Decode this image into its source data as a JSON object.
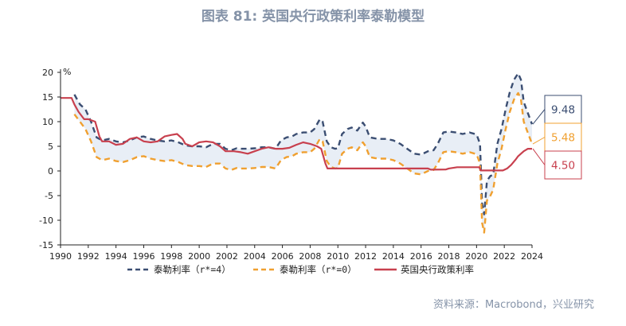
{
  "chart_data": {
    "type": "line",
    "title": "图表 81: 英国央行政策利率泰勒模型",
    "ylabel": "%",
    "xlabel": "",
    "xlim": [
      1990,
      2024
    ],
    "ylim": [
      -15,
      20
    ],
    "x_ticks": [
      "1990",
      "1992",
      "1994",
      "1996",
      "1998",
      "2000",
      "2002",
      "2004",
      "2006",
      "2008",
      "2010",
      "2012",
      "2014",
      "2016",
      "2018",
      "2020",
      "2022",
      "2024"
    ],
    "y_ticks": [
      "20",
      "15",
      "10",
      "5",
      "0",
      "-5",
      "-10",
      "-15"
    ],
    "legend_position": "bottom",
    "shaded_band": "between Taylor rule (r*=4) and Taylor rule (r*=0)",
    "series": [
      {
        "name": "泰勒利率（r*=4）",
        "color": "#3b4e72",
        "dash": "dashed",
        "points": [
          [
            1991.0,
            15.5
          ],
          [
            1991.4,
            13.5
          ],
          [
            1991.8,
            12.5
          ],
          [
            1992.2,
            10
          ],
          [
            1992.6,
            6.8
          ],
          [
            1993.0,
            6.2
          ],
          [
            1993.5,
            6.5
          ],
          [
            1994.0,
            6.0
          ],
          [
            1994.5,
            5.8
          ],
          [
            1995.0,
            6.2
          ],
          [
            1995.5,
            6.8
          ],
          [
            1996.0,
            7.0
          ],
          [
            1996.5,
            6.5
          ],
          [
            1997.0,
            6.2
          ],
          [
            1997.5,
            6.0
          ],
          [
            1998.0,
            6.2
          ],
          [
            1998.5,
            5.8
          ],
          [
            1999.0,
            5.2
          ],
          [
            1999.5,
            5.0
          ],
          [
            2000.0,
            5.0
          ],
          [
            2000.5,
            4.8
          ],
          [
            2001.0,
            5.5
          ],
          [
            2001.5,
            5.5
          ],
          [
            2001.9,
            4.5
          ],
          [
            2002.3,
            4.2
          ],
          [
            2002.7,
            4.6
          ],
          [
            2003.0,
            4.5
          ],
          [
            2003.5,
            4.5
          ],
          [
            2004.0,
            4.6
          ],
          [
            2004.5,
            4.8
          ],
          [
            2005.0,
            4.8
          ],
          [
            2005.5,
            4.5
          ],
          [
            2005.9,
            6.2
          ],
          [
            2006.3,
            6.8
          ],
          [
            2006.7,
            7.0
          ],
          [
            2007.0,
            7.5
          ],
          [
            2007.5,
            7.8
          ],
          [
            2008.0,
            7.8
          ],
          [
            2008.3,
            8.5
          ],
          [
            2008.7,
            10.5
          ],
          [
            2008.9,
            10.0
          ],
          [
            2009.2,
            6.0
          ],
          [
            2009.5,
            4.8
          ],
          [
            2009.8,
            4.5
          ],
          [
            2010.0,
            4.6
          ],
          [
            2010.3,
            7.5
          ],
          [
            2010.7,
            8.5
          ],
          [
            2011.0,
            8.8
          ],
          [
            2011.4,
            8.2
          ],
          [
            2011.8,
            9.8
          ],
          [
            2012.0,
            9.0
          ],
          [
            2012.3,
            6.8
          ],
          [
            2012.7,
            6.6
          ],
          [
            2013.0,
            6.5
          ],
          [
            2013.5,
            6.5
          ],
          [
            2014.0,
            6.2
          ],
          [
            2014.5,
            5.5
          ],
          [
            2015.0,
            4.5
          ],
          [
            2015.5,
            3.5
          ],
          [
            2016.0,
            3.3
          ],
          [
            2016.5,
            4.0
          ],
          [
            2016.9,
            4.2
          ],
          [
            2017.2,
            5.5
          ],
          [
            2017.6,
            7.8
          ],
          [
            2018.0,
            8.0
          ],
          [
            2018.5,
            7.8
          ],
          [
            2019.0,
            7.5
          ],
          [
            2019.5,
            7.8
          ],
          [
            2020.0,
            7.4
          ],
          [
            2020.25,
            5.5
          ],
          [
            2020.4,
            -6.5
          ],
          [
            2020.55,
            -8.8
          ],
          [
            2020.75,
            -2.0
          ],
          [
            2021.0,
            -1.0
          ],
          [
            2021.2,
            -0.8
          ],
          [
            2021.5,
            5.5
          ],
          [
            2021.8,
            8.5
          ],
          [
            2022.1,
            12.5
          ],
          [
            2022.4,
            16.0
          ],
          [
            2022.7,
            18.5
          ],
          [
            2023.0,
            19.8
          ],
          [
            2023.2,
            18.5
          ],
          [
            2023.4,
            14.0
          ],
          [
            2023.6,
            12.5
          ],
          [
            2023.8,
            11.0
          ],
          [
            2024.0,
            9.48
          ]
        ]
      },
      {
        "name": "泰勒利率（r*=0）",
        "color": "#f0a030",
        "dash": "dashed",
        "points": [
          [
            1991.0,
            11.5
          ],
          [
            1991.4,
            10.0
          ],
          [
            1991.8,
            8.5
          ],
          [
            1992.2,
            6.0
          ],
          [
            1992.6,
            2.8
          ],
          [
            1993.0,
            2.2
          ],
          [
            1993.5,
            2.5
          ],
          [
            1994.0,
            2.0
          ],
          [
            1994.5,
            1.8
          ],
          [
            1995.0,
            2.2
          ],
          [
            1995.5,
            2.8
          ],
          [
            1996.0,
            3.0
          ],
          [
            1996.5,
            2.5
          ],
          [
            1997.0,
            2.2
          ],
          [
            1997.5,
            2.0
          ],
          [
            1998.0,
            2.2
          ],
          [
            1998.5,
            1.8
          ],
          [
            1999.0,
            1.2
          ],
          [
            1999.5,
            1.0
          ],
          [
            2000.0,
            1.0
          ],
          [
            2000.5,
            0.8
          ],
          [
            2001.0,
            1.5
          ],
          [
            2001.5,
            1.5
          ],
          [
            2001.9,
            0.5
          ],
          [
            2002.3,
            0.2
          ],
          [
            2002.7,
            0.6
          ],
          [
            2003.0,
            0.5
          ],
          [
            2003.5,
            0.5
          ],
          [
            2004.0,
            0.6
          ],
          [
            2004.5,
            0.8
          ],
          [
            2005.0,
            0.8
          ],
          [
            2005.5,
            0.5
          ],
          [
            2005.9,
            2.2
          ],
          [
            2006.3,
            2.8
          ],
          [
            2006.7,
            3.0
          ],
          [
            2007.0,
            3.5
          ],
          [
            2007.5,
            3.8
          ],
          [
            2008.0,
            3.8
          ],
          [
            2008.3,
            4.5
          ],
          [
            2008.7,
            6.5
          ],
          [
            2008.9,
            6.0
          ],
          [
            2009.2,
            2.0
          ],
          [
            2009.5,
            0.8
          ],
          [
            2009.8,
            0.5
          ],
          [
            2010.0,
            0.6
          ],
          [
            2010.3,
            3.5
          ],
          [
            2010.7,
            4.5
          ],
          [
            2011.0,
            4.8
          ],
          [
            2011.4,
            4.2
          ],
          [
            2011.8,
            5.8
          ],
          [
            2012.0,
            5.0
          ],
          [
            2012.3,
            2.8
          ],
          [
            2012.7,
            2.6
          ],
          [
            2013.0,
            2.5
          ],
          [
            2013.5,
            2.5
          ],
          [
            2014.0,
            2.2
          ],
          [
            2014.5,
            1.5
          ],
          [
            2015.0,
            0.5
          ],
          [
            2015.5,
            -0.5
          ],
          [
            2016.0,
            -0.7
          ],
          [
            2016.5,
            0.0
          ],
          [
            2016.9,
            0.2
          ],
          [
            2017.2,
            1.5
          ],
          [
            2017.6,
            3.8
          ],
          [
            2018.0,
            4.0
          ],
          [
            2018.5,
            3.8
          ],
          [
            2019.0,
            3.5
          ],
          [
            2019.5,
            3.8
          ],
          [
            2020.0,
            3.4
          ],
          [
            2020.25,
            1.5
          ],
          [
            2020.4,
            -10.5
          ],
          [
            2020.55,
            -12.5
          ],
          [
            2020.75,
            -6.0
          ],
          [
            2021.0,
            -5.0
          ],
          [
            2021.2,
            -3.8
          ],
          [
            2021.5,
            1.5
          ],
          [
            2021.8,
            4.5
          ],
          [
            2022.1,
            8.5
          ],
          [
            2022.4,
            12.0
          ],
          [
            2022.7,
            14.5
          ],
          [
            2023.0,
            15.8
          ],
          [
            2023.2,
            14.5
          ],
          [
            2023.4,
            10.0
          ],
          [
            2023.6,
            8.5
          ],
          [
            2023.8,
            7.0
          ],
          [
            2024.0,
            5.48
          ]
        ]
      },
      {
        "name": "英国央行政策利率",
        "color": "#c8404e",
        "dash": "solid",
        "points": [
          [
            1990.0,
            14.8
          ],
          [
            1990.8,
            14.8
          ],
          [
            1991.0,
            13.5
          ],
          [
            1991.3,
            12.0
          ],
          [
            1991.7,
            10.5
          ],
          [
            1992.0,
            10.5
          ],
          [
            1992.5,
            10.0
          ],
          [
            1992.8,
            7.0
          ],
          [
            1993.0,
            6.0
          ],
          [
            1993.5,
            6.0
          ],
          [
            1994.0,
            5.3
          ],
          [
            1994.5,
            5.5
          ],
          [
            1995.0,
            6.5
          ],
          [
            1995.5,
            6.8
          ],
          [
            1996.0,
            6.0
          ],
          [
            1996.5,
            5.8
          ],
          [
            1997.0,
            6.0
          ],
          [
            1997.5,
            7.0
          ],
          [
            1998.0,
            7.3
          ],
          [
            1998.4,
            7.5
          ],
          [
            1998.8,
            6.5
          ],
          [
            1999.0,
            5.5
          ],
          [
            1999.5,
            5.0
          ],
          [
            2000.0,
            5.8
          ],
          [
            2000.5,
            6.0
          ],
          [
            2001.0,
            5.8
          ],
          [
            2001.5,
            5.0
          ],
          [
            2001.9,
            4.0
          ],
          [
            2002.5,
            4.0
          ],
          [
            2003.0,
            3.8
          ],
          [
            2003.5,
            3.5
          ],
          [
            2004.0,
            4.0
          ],
          [
            2004.5,
            4.5
          ],
          [
            2005.0,
            4.8
          ],
          [
            2005.5,
            4.5
          ],
          [
            2006.0,
            4.5
          ],
          [
            2006.5,
            4.7
          ],
          [
            2007.0,
            5.3
          ],
          [
            2007.5,
            5.8
          ],
          [
            2008.0,
            5.5
          ],
          [
            2008.5,
            5.0
          ],
          [
            2008.8,
            4.5
          ],
          [
            2008.95,
            3.0
          ],
          [
            2009.1,
            1.5
          ],
          [
            2009.25,
            0.5
          ],
          [
            2010.0,
            0.5
          ],
          [
            2012.0,
            0.5
          ],
          [
            2014.0,
            0.5
          ],
          [
            2016.5,
            0.5
          ],
          [
            2016.7,
            0.25
          ],
          [
            2017.8,
            0.3
          ],
          [
            2018.0,
            0.5
          ],
          [
            2018.6,
            0.75
          ],
          [
            2020.2,
            0.75
          ],
          [
            2020.3,
            0.1
          ],
          [
            2021.9,
            0.1
          ],
          [
            2022.2,
            0.5
          ],
          [
            2022.5,
            1.25
          ],
          [
            2022.8,
            2.25
          ],
          [
            2023.0,
            3.0
          ],
          [
            2023.4,
            4.0
          ],
          [
            2023.7,
            4.5
          ],
          [
            2024.0,
            4.5
          ]
        ]
      }
    ],
    "end_labels": [
      {
        "series": 0,
        "text": "9.48",
        "color": "#3b4e72"
      },
      {
        "series": 1,
        "text": "5.48",
        "color": "#f0a030"
      },
      {
        "series": 2,
        "text": "4.50",
        "color": "#c8404e"
      }
    ]
  },
  "source_note": "资料来源：Macrobond，兴业研究",
  "colors": {
    "band": "#e8eef6",
    "axis": "#222222"
  }
}
